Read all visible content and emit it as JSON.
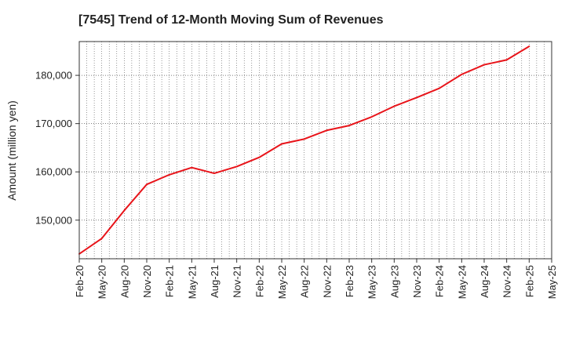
{
  "chart_data": {
    "type": "line",
    "title": "[7545]  Trend of 12-Month Moving Sum of Revenues",
    "xlabel": "",
    "ylabel": "Amount (million yen)",
    "ylim": [
      142000,
      187000
    ],
    "yticks": [
      150000,
      160000,
      170000,
      180000
    ],
    "ytick_labels": [
      "150,000",
      "160,000",
      "170,000",
      "180,000"
    ],
    "xticks": [
      "Feb-20",
      "May-20",
      "Aug-20",
      "Nov-20",
      "Feb-21",
      "May-21",
      "Aug-21",
      "Nov-21",
      "Feb-22",
      "May-22",
      "Aug-22",
      "Nov-22",
      "Feb-23",
      "May-23",
      "Aug-23",
      "Nov-23",
      "Feb-24",
      "May-24",
      "Aug-24",
      "Nov-24",
      "Feb-25",
      "May-25"
    ],
    "grid": true,
    "series": [
      {
        "color": "#e8141a",
        "x": [
          "Feb-20",
          "May-20",
          "Aug-20",
          "Nov-20",
          "Feb-21",
          "May-21",
          "Aug-21",
          "Nov-21",
          "Feb-22",
          "May-22",
          "Aug-22",
          "Nov-22",
          "Feb-23",
          "May-23",
          "Aug-23",
          "Nov-23",
          "Feb-24",
          "May-24",
          "Aug-24",
          "Nov-24",
          "Feb-25"
        ],
        "values": [
          143000,
          146200,
          152000,
          157400,
          159400,
          160900,
          159700,
          161100,
          163000,
          165800,
          166800,
          168600,
          169600,
          171400,
          173600,
          175400,
          177300,
          180200,
          182200,
          183200,
          186000
        ]
      }
    ]
  }
}
